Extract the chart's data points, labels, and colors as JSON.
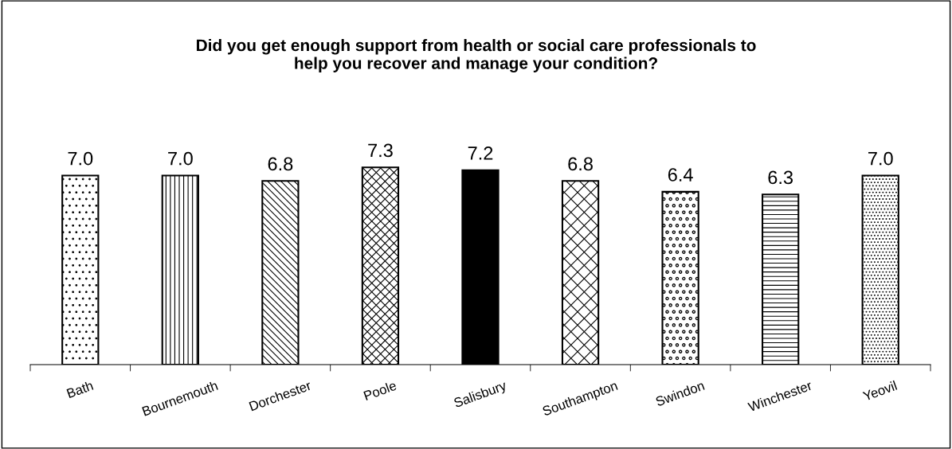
{
  "chart_data": {
    "type": "bar",
    "title": "Did you get enough support from health or social care professionals to\nhelp you recover and manage your condition?",
    "categories": [
      "Bath",
      "Bournemouth",
      "Dorchester",
      "Poole",
      "Salisbury",
      "Southampton",
      "Swindon",
      "Winchester",
      "Yeovil"
    ],
    "values": [
      7.0,
      7.0,
      6.8,
      7.3,
      7.2,
      6.8,
      6.4,
      6.3,
      7.0
    ],
    "value_labels": [
      "7.0",
      "7.0",
      "6.8",
      "7.3",
      "7.2",
      "6.8",
      "6.4",
      "6.3",
      "7.0"
    ],
    "colors": [
      "#ffffff",
      "#ffffff",
      "#ffffff",
      "#ffffff",
      "#000000",
      "#ffffff",
      "#ffffff",
      "#ffffff",
      "#ffffff"
    ],
    "grid": false,
    "legend": false
  }
}
